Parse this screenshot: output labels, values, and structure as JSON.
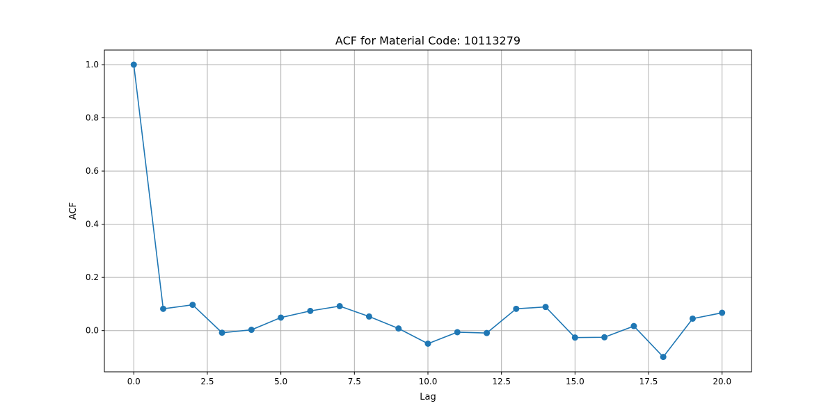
{
  "chart_data": {
    "type": "line",
    "title": "ACF for Material Code: 10113279",
    "xlabel": "Lag",
    "ylabel": "ACF",
    "xlim": [
      -1.0,
      21.0
    ],
    "ylim": [
      -0.155,
      1.055
    ],
    "xticks": [
      0.0,
      2.5,
      5.0,
      7.5,
      10.0,
      12.5,
      15.0,
      17.5,
      20.0
    ],
    "xtick_labels": [
      "0.0",
      "2.5",
      "5.0",
      "7.5",
      "10.0",
      "12.5",
      "15.0",
      "17.5",
      "20.0"
    ],
    "yticks": [
      0.0,
      0.2,
      0.4,
      0.6,
      0.8,
      1.0
    ],
    "ytick_labels": [
      "0.0",
      "0.2",
      "0.4",
      "0.6",
      "0.8",
      "1.0"
    ],
    "grid": true,
    "series": [
      {
        "color": "#1f77b4",
        "marker": "circle",
        "x": [
          0,
          1,
          2,
          3,
          4,
          5,
          6,
          7,
          8,
          9,
          10,
          11,
          12,
          13,
          14,
          15,
          16,
          17,
          18,
          19,
          20
        ],
        "values": [
          1.0,
          0.082,
          0.097,
          -0.008,
          0.003,
          0.049,
          0.074,
          0.092,
          0.053,
          0.008,
          -0.049,
          -0.006,
          -0.009,
          0.082,
          0.089,
          -0.026,
          -0.025,
          0.017,
          -0.099,
          0.045,
          0.067
        ]
      }
    ]
  }
}
